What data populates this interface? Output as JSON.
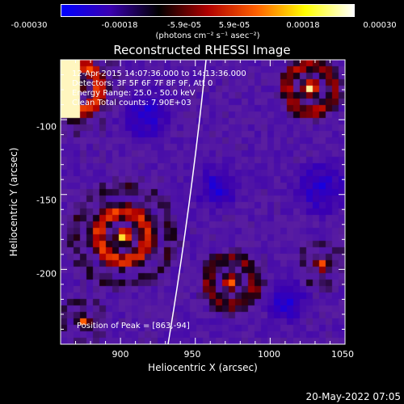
{
  "chart_data": {
    "type": "heatmap",
    "title": "Reconstructed RHESSI Image",
    "xlabel": "Heliocentric X (arcsec)",
    "ylabel": "Heliocentric Y (arcsec)",
    "xlim": [
      860,
      1050
    ],
    "ylim": [
      -250,
      -60
    ],
    "x_ticks": [
      "900",
      "950",
      "1000",
      "1050"
    ],
    "y_ticks": [
      "-100",
      "-150",
      "-200"
    ],
    "colorbar": {
      "ticks": [
        "-0.00030",
        "-0.00018",
        "-5.9e-05",
        "5.9e-05",
        "0.00018",
        "0.00030"
      ],
      "units": "(photons cm⁻² s⁻¹ asec⁻²)",
      "colors": [
        "#0000ff",
        "#3a00b0",
        "#000000",
        "#b00000",
        "#ff6000",
        "#ffff00",
        "#ffffff"
      ]
    },
    "annotations": {
      "time_range": "12-Apr-2015 14:07:36.000 to 14:13:36.000",
      "detectors": "Detectors: 3F 5F 6F 7F 8F 9F, Att 0",
      "energy": "Energy Range: 25.0 - 50.0 keV",
      "method": "Clean    Total counts: 7.90E+03",
      "peak": "Position of Peak = [863,-94]"
    }
  },
  "footer": {
    "datestamp": "20-May-2022 07:05"
  }
}
